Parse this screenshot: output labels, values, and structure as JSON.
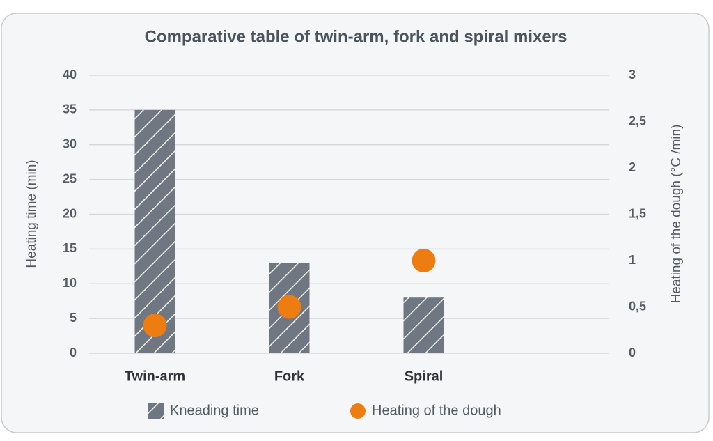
{
  "chart_data": {
    "type": "bar",
    "title": "Comparative table of twin-arm, fork and spiral mixers",
    "y_label": "Heating time (min)",
    "y2_label": "Heating of the dough (°C /min)",
    "categories": [
      "Twin-arm",
      "Fork",
      "Spiral",
      null
    ],
    "series": [
      {
        "name": "Kneading time",
        "type": "bar",
        "color": "#6f7782",
        "hatch": true,
        "values": [
          35,
          13,
          8,
          null
        ]
      },
      {
        "name": "Heating of the dough",
        "type": "scatter",
        "axis": "y2",
        "color": "#ee7d11",
        "values": [
          0.3,
          0.5,
          1,
          null
        ]
      }
    ],
    "ylim": [
      0,
      40
    ],
    "yticks": [
      0,
      5,
      10,
      15,
      20,
      25,
      30,
      35,
      40
    ],
    "y2lim": [
      0,
      3
    ],
    "y2ticks": [
      0,
      {
        "value": 0.5,
        "label": "0,5"
      },
      1,
      {
        "value": 1.5,
        "label": "1,5"
      },
      2,
      {
        "value": 2.5,
        "label": "2,5"
      },
      3
    ],
    "grid": true,
    "legend": "bottom"
  }
}
